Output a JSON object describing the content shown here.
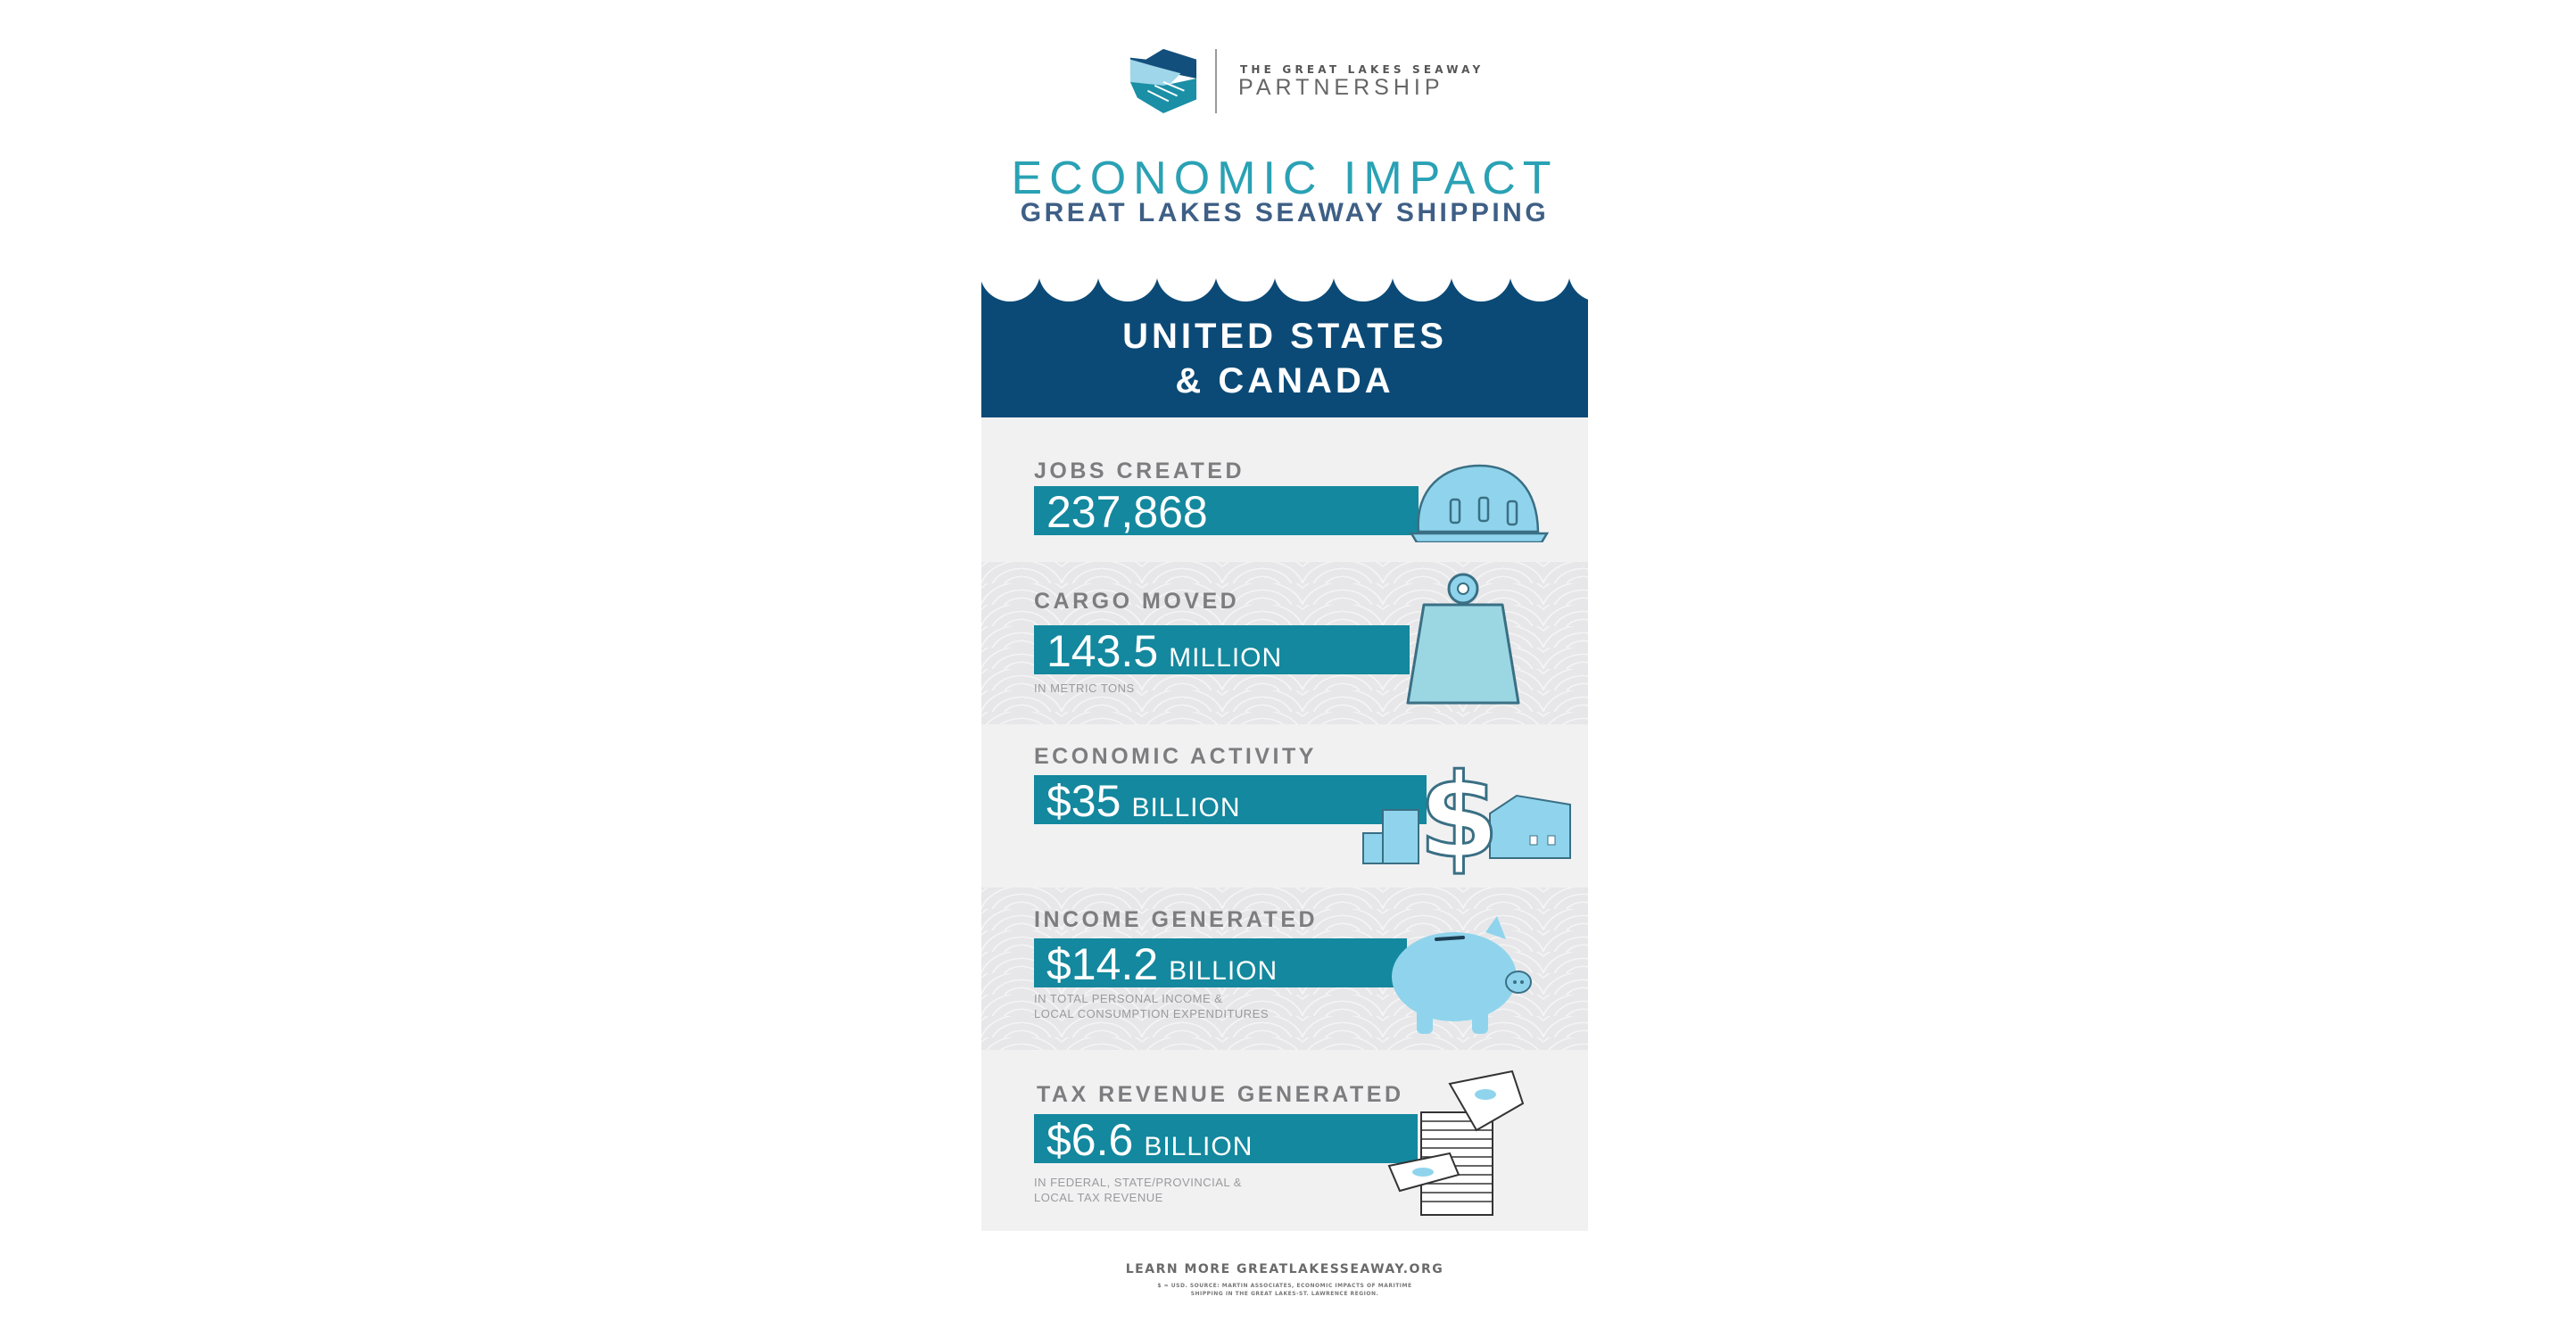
{
  "logo": {
    "line1": "THE GREAT LAKES SEAWAY",
    "line2": "PARTNERSHIP",
    "icon": "handshake-hexagon-logo"
  },
  "title": "ECONOMIC IMPACT",
  "subtitle": "GREAT LAKES SEAWAY SHIPPING",
  "region": {
    "line1": "UNITED STATES",
    "line2": "& CANADA"
  },
  "stats": [
    {
      "label": "JOBS CREATED",
      "value": "237,868",
      "unit": "",
      "notes": [],
      "icon": "hard-hat-icon"
    },
    {
      "label": "CARGO MOVED",
      "value": "143.5",
      "unit": "MILLION",
      "notes": [
        "IN METRIC TONS"
      ],
      "icon": "weight-icon"
    },
    {
      "label": "ECONOMIC ACTIVITY",
      "value": "$35",
      "unit": "BILLION",
      "notes": [],
      "icon": "dollar-city-icon"
    },
    {
      "label": "INCOME GENERATED",
      "value": "$14.2",
      "unit": "BILLION",
      "notes": [
        "IN TOTAL PERSONAL INCOME &",
        "LOCAL CONSUMPTION EXPENDITURES"
      ],
      "icon": "piggy-bank-icon"
    },
    {
      "label": "TAX REVENUE GENERATED",
      "value": "$6.6",
      "unit": "BILLION",
      "notes": [
        "IN FEDERAL, STATE/PROVINCIAL &",
        "LOCAL TAX REVENUE"
      ],
      "icon": "money-stack-icon"
    }
  ],
  "footer": {
    "learn_more": "LEARN MORE GREATLAKESSEAWAY.ORG",
    "source1": "$ = USD. SOURCE: MARTIN ASSOCIATES, ECONOMIC IMPACTS OF MARITIME",
    "source2": "SHIPPING IN THE GREAT LAKES-ST. LAWRENCE REGION."
  },
  "colors": {
    "navy": "#0b4a76",
    "teal": "#13889e",
    "title_teal": "#2aa1b4",
    "icon_blue": "#8fd4ec"
  }
}
